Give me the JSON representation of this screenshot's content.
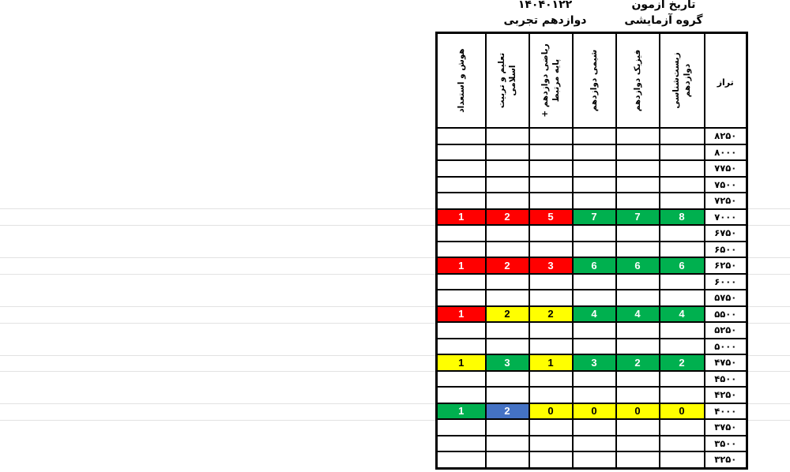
{
  "meta": {
    "exam_date_label": "تاریخ آزمون",
    "group_label": "گروه آزمایشی",
    "exam_date_value": "۱۴۰۴۰۱۲۲",
    "group_value": "دوازدهم تجربی"
  },
  "table": {
    "columns": [
      {
        "label": "هوش و استعداد",
        "rotated": true
      },
      {
        "label": "تعلیم و تربیت اسلامی",
        "rotated": true
      },
      {
        "label": "ریاضی دوازدهم + پایه مرتبط",
        "rotated": true
      },
      {
        "label": "شیمی دوازدهم",
        "rotated": true
      },
      {
        "label": "فیزیک دوازدهم",
        "rotated": true
      },
      {
        "label": "زیست‌شناسی دوازدهم",
        "rotated": true
      },
      {
        "label": "تراز",
        "rotated": false
      }
    ],
    "colors": {
      "red": "#FF0000",
      "green": "#00B04F",
      "yellow": "#FFFF00",
      "blue": "#4472C4"
    },
    "rows": [
      {
        "taraz": "۸۲۵۰",
        "cells": [
          null,
          null,
          null,
          null,
          null,
          null
        ]
      },
      {
        "taraz": "۸۰۰۰",
        "cells": [
          null,
          null,
          null,
          null,
          null,
          null
        ]
      },
      {
        "taraz": "۷۷۵۰",
        "cells": [
          null,
          null,
          null,
          null,
          null,
          null
        ]
      },
      {
        "taraz": "۷۵۰۰",
        "cells": [
          null,
          null,
          null,
          null,
          null,
          null
        ]
      },
      {
        "taraz": "۷۲۵۰",
        "cells": [
          null,
          null,
          null,
          null,
          null,
          null
        ]
      },
      {
        "taraz": "۷۰۰۰",
        "cells": [
          {
            "value": "1",
            "bg": "red",
            "text": "#ffffff"
          },
          {
            "value": "2",
            "bg": "red",
            "text": "#ffffff"
          },
          {
            "value": "5",
            "bg": "red",
            "text": "#ffffff"
          },
          {
            "value": "7",
            "bg": "green",
            "text": "#ffffff"
          },
          {
            "value": "7",
            "bg": "green",
            "text": "#ffffff"
          },
          {
            "value": "8",
            "bg": "green",
            "text": "#ffffff"
          }
        ]
      },
      {
        "taraz": "۶۷۵۰",
        "cells": [
          null,
          null,
          null,
          null,
          null,
          null
        ]
      },
      {
        "taraz": "۶۵۰۰",
        "cells": [
          null,
          null,
          null,
          null,
          null,
          null
        ]
      },
      {
        "taraz": "۶۲۵۰",
        "cells": [
          {
            "value": "1",
            "bg": "red",
            "text": "#ffffff"
          },
          {
            "value": "2",
            "bg": "red",
            "text": "#ffffff"
          },
          {
            "value": "3",
            "bg": "red",
            "text": "#ffffff"
          },
          {
            "value": "6",
            "bg": "green",
            "text": "#ffffff"
          },
          {
            "value": "6",
            "bg": "green",
            "text": "#ffffff"
          },
          {
            "value": "6",
            "bg": "green",
            "text": "#ffffff"
          }
        ]
      },
      {
        "taraz": "۶۰۰۰",
        "cells": [
          null,
          null,
          null,
          null,
          null,
          null
        ]
      },
      {
        "taraz": "۵۷۵۰",
        "cells": [
          null,
          null,
          null,
          null,
          null,
          null
        ]
      },
      {
        "taraz": "۵۵۰۰",
        "cells": [
          {
            "value": "1",
            "bg": "red",
            "text": "#ffffff"
          },
          {
            "value": "2",
            "bg": "yellow",
            "text": "#000000"
          },
          {
            "value": "2",
            "bg": "yellow",
            "text": "#000000"
          },
          {
            "value": "4",
            "bg": "green",
            "text": "#ffffff"
          },
          {
            "value": "4",
            "bg": "green",
            "text": "#ffffff"
          },
          {
            "value": "4",
            "bg": "green",
            "text": "#ffffff"
          }
        ]
      },
      {
        "taraz": "۵۲۵۰",
        "cells": [
          null,
          null,
          null,
          null,
          null,
          null
        ]
      },
      {
        "taraz": "۵۰۰۰",
        "cells": [
          null,
          null,
          null,
          null,
          null,
          null
        ]
      },
      {
        "taraz": "۴۷۵۰",
        "cells": [
          {
            "value": "1",
            "bg": "yellow",
            "text": "#000000"
          },
          {
            "value": "3",
            "bg": "green",
            "text": "#ffffff"
          },
          {
            "value": "1",
            "bg": "yellow",
            "text": "#000000"
          },
          {
            "value": "3",
            "bg": "green",
            "text": "#ffffff"
          },
          {
            "value": "2",
            "bg": "green",
            "text": "#ffffff"
          },
          {
            "value": "2",
            "bg": "green",
            "text": "#ffffff"
          }
        ]
      },
      {
        "taraz": "۴۵۰۰",
        "cells": [
          null,
          null,
          null,
          null,
          null,
          null
        ]
      },
      {
        "taraz": "۴۲۵۰",
        "cells": [
          null,
          null,
          null,
          null,
          null,
          null
        ]
      },
      {
        "taraz": "۴۰۰۰",
        "cells": [
          {
            "value": "1",
            "bg": "green",
            "text": "#ffffff"
          },
          {
            "value": "2",
            "bg": "blue",
            "text": "#ffffff"
          },
          {
            "value": "0",
            "bg": "yellow",
            "text": "#000000"
          },
          {
            "value": "0",
            "bg": "yellow",
            "text": "#000000"
          },
          {
            "value": "0",
            "bg": "yellow",
            "text": "#000000"
          },
          {
            "value": "0",
            "bg": "yellow",
            "text": "#000000"
          }
        ]
      },
      {
        "taraz": "۳۷۵۰",
        "cells": [
          null,
          null,
          null,
          null,
          null,
          null
        ]
      },
      {
        "taraz": "۳۵۰۰",
        "cells": [
          null,
          null,
          null,
          null,
          null,
          null
        ]
      },
      {
        "taraz": "۳۲۵۰",
        "cells": [
          null,
          null,
          null,
          null,
          null,
          null
        ]
      }
    ]
  }
}
